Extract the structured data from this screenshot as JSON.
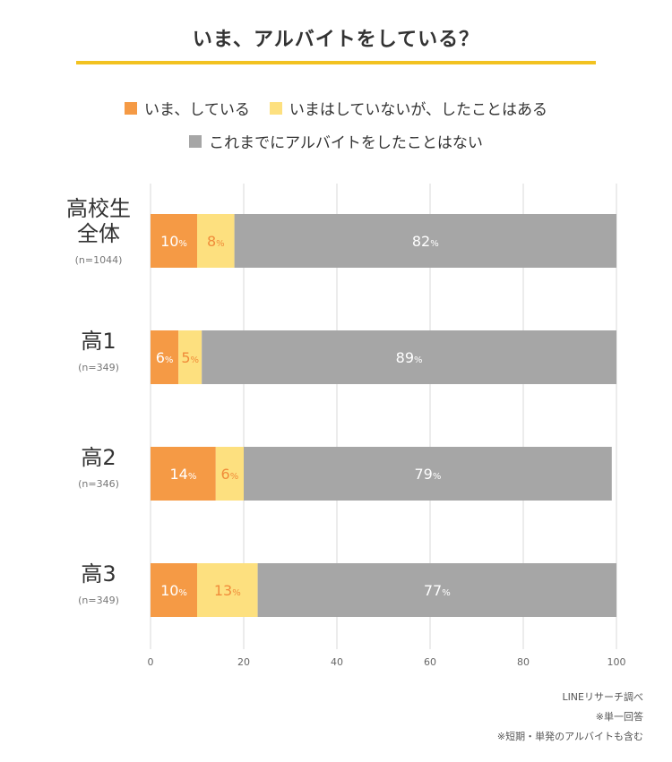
{
  "title": "いま、アルバイトをしている？",
  "legend": [
    {
      "label": "いま、している",
      "color": "#f59a45"
    },
    {
      "label": "いまはしていないが、したことはある",
      "color": "#fde07f"
    },
    {
      "label": "これまでにアルバイトをしたことはない",
      "color": "#a6a6a6"
    }
  ],
  "chart_data": {
    "type": "bar",
    "orientation": "horizontal",
    "stacked": true,
    "categories": [
      {
        "lines": [
          "高校生",
          "全体"
        ],
        "n": "(n=1044)"
      },
      {
        "lines": [
          "高1"
        ],
        "n": "(n=349)"
      },
      {
        "lines": [
          "高2"
        ],
        "n": "(n=346)"
      },
      {
        "lines": [
          "高3"
        ],
        "n": "(n=349)"
      }
    ],
    "series": [
      {
        "name": "いま、している",
        "color": "#f59a45",
        "label_color": "#ffffff",
        "values": [
          10,
          6,
          14,
          10
        ]
      },
      {
        "name": "いまはしていないが、したことはある",
        "color": "#fde07f",
        "label_color": "#f08c3a",
        "values": [
          8,
          5,
          6,
          13
        ]
      },
      {
        "name": "これまでにアルバイトをしたことはない",
        "color": "#a6a6a6",
        "label_color": "#ffffff",
        "values": [
          82,
          89,
          79,
          77
        ]
      }
    ],
    "percent_suffix": "%",
    "xlim": [
      0,
      100
    ],
    "xticks": [
      0,
      20,
      40,
      60,
      80,
      100
    ],
    "grid": true
  },
  "footnotes": [
    "LINEリサーチ調べ",
    "※単一回答",
    "※短期・単発のアルバイトも含む"
  ]
}
